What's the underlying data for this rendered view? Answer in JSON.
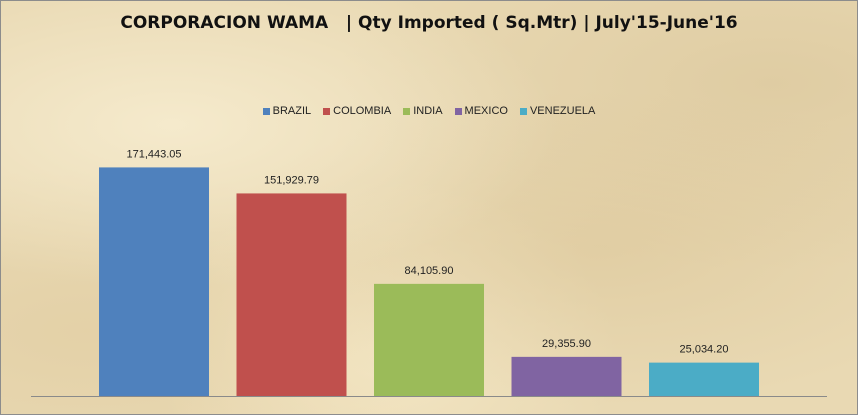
{
  "chart_data": {
    "type": "bar",
    "title": "CORPORACION WAMA   | Qty Imported ( Sq.Mtr) | July'15-June'16",
    "xlabel": "",
    "ylabel": "",
    "ylim": [
      0,
      180000
    ],
    "grid": false,
    "legend_position": "top-center",
    "categories": [
      "BRAZIL",
      "COLOMBIA",
      "INDIA",
      "MEXICO",
      "VENEZUELA"
    ],
    "values": [
      171443.05,
      151929.79,
      84105.9,
      29355.9,
      25034.2
    ],
    "data_labels": [
      "171,443.05",
      "151,929.79",
      "84,105.90",
      "29,355.90",
      "25,034.20"
    ],
    "colors": [
      "#4f81bd",
      "#c0504d",
      "#9bbb59",
      "#8064a2",
      "#4bacc6"
    ]
  }
}
